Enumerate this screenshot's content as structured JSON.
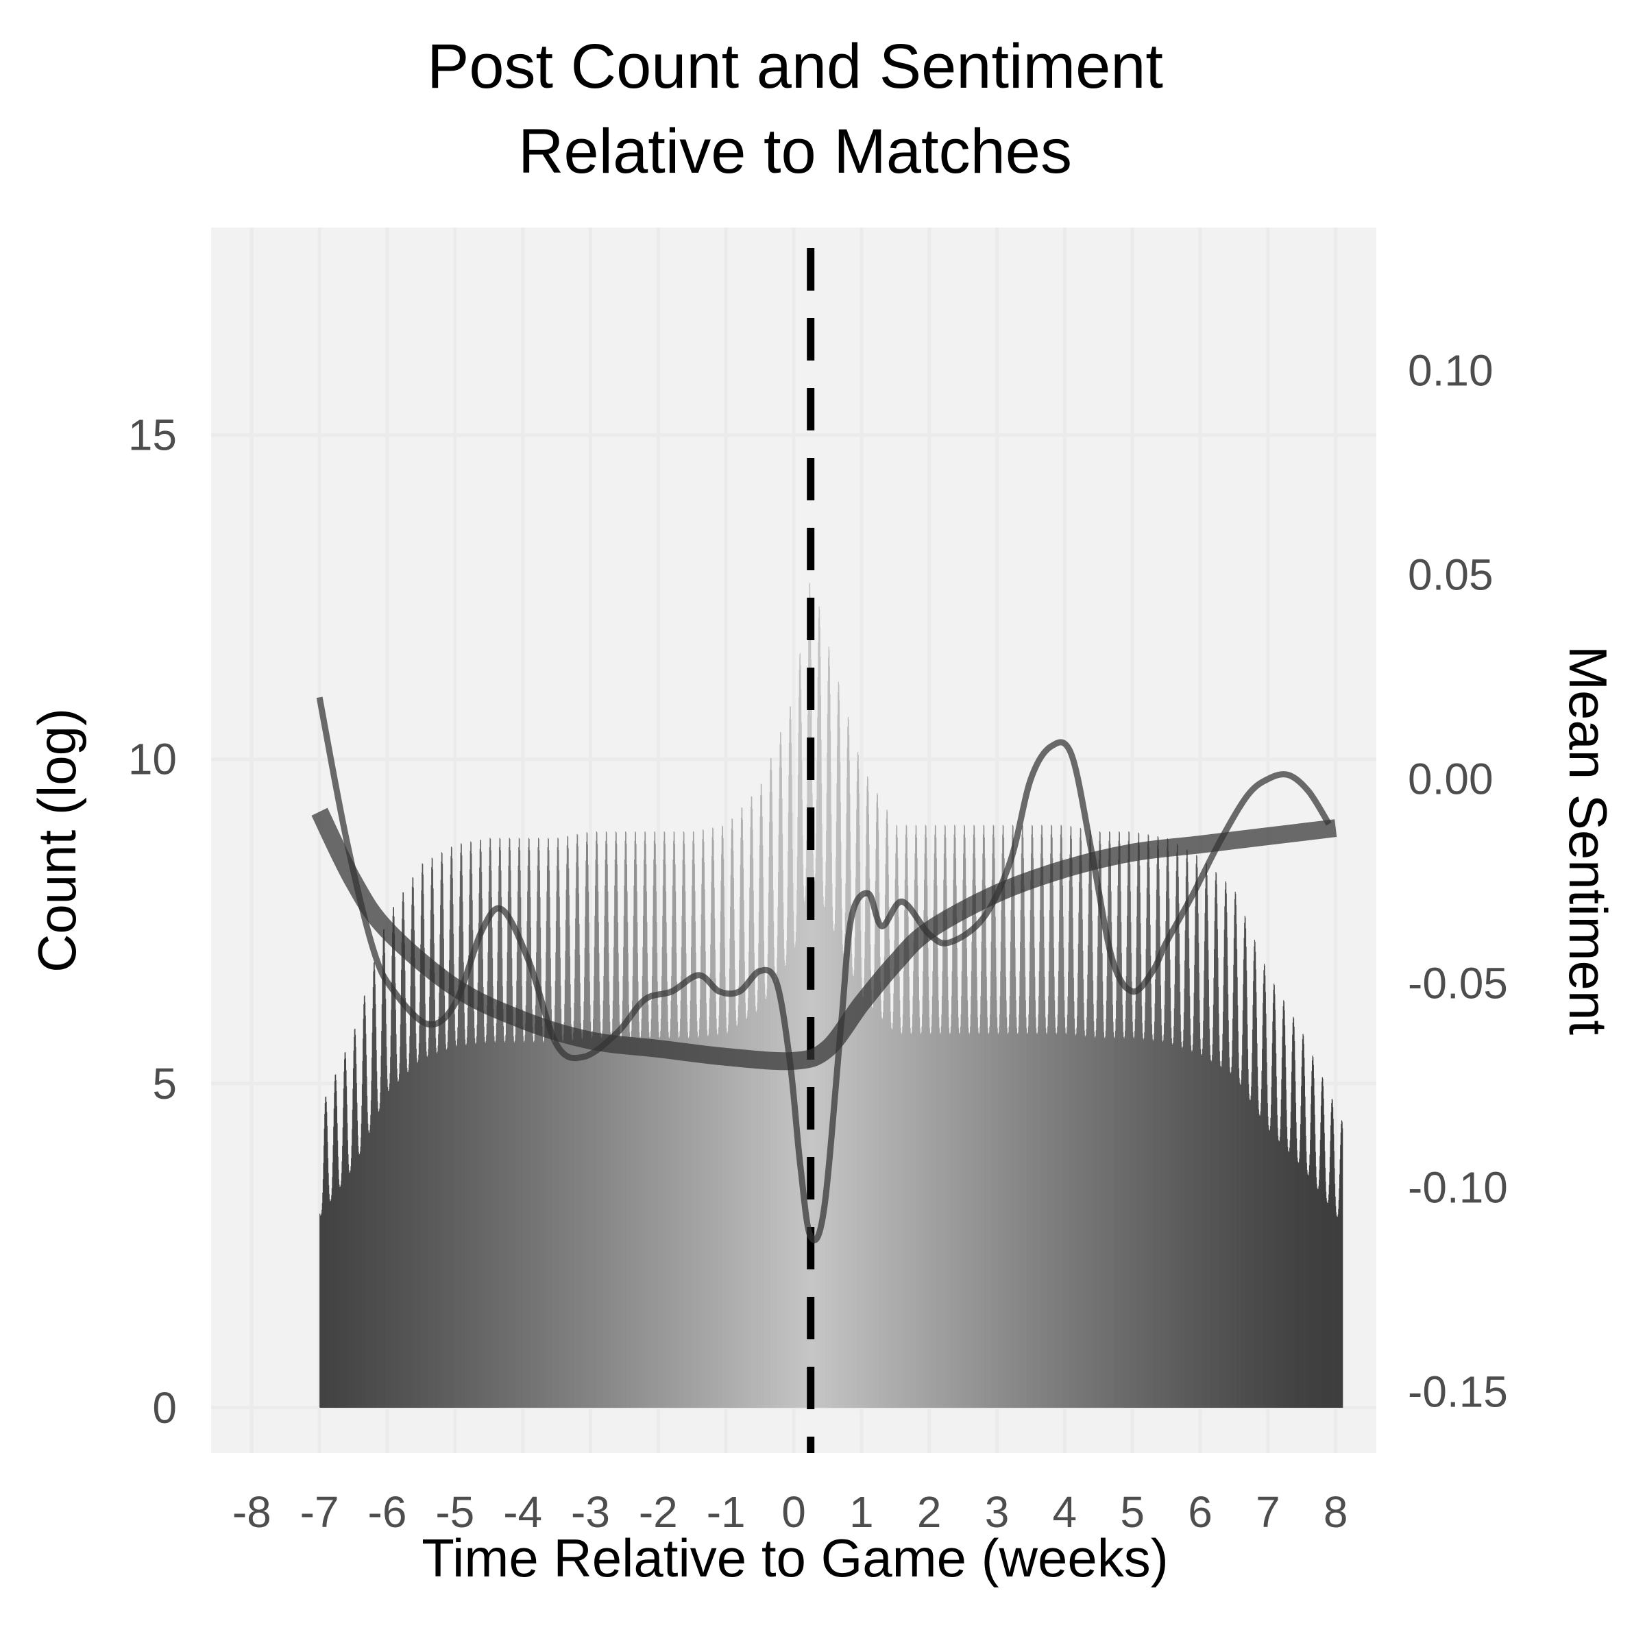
{
  "chart_data": {
    "type": "bar",
    "title_line1": "Post Count and Sentiment",
    "title_line2": "Relative to Matches",
    "xlabel": "Time Relative to Game (weeks)",
    "ylabel": "Count (log)",
    "y2label": "Mean Sentiment",
    "xlim": [
      -8.6,
      8.6
    ],
    "ylim": [
      -0.7,
      18.2
    ],
    "y2lim": [
      -0.165,
      0.135
    ],
    "x_ticks": [
      -8,
      -7,
      -6,
      -5,
      -4,
      -3,
      -2,
      -1,
      0,
      1,
      2,
      3,
      4,
      5,
      6,
      7,
      8
    ],
    "x_tick_labels": [
      "-8",
      "-7",
      "-6",
      "-5",
      "-4",
      "-3",
      "-2",
      "-1",
      "0",
      "1",
      "2",
      "3",
      "4",
      "5",
      "6",
      "7",
      "8"
    ],
    "y_ticks": [
      0,
      5,
      10,
      15
    ],
    "y_tick_labels": [
      "0",
      "5",
      "10",
      "15"
    ],
    "y2_ticks": [
      -0.15,
      -0.1,
      -0.05,
      0.0,
      0.05,
      0.1
    ],
    "y2_tick_labels": [
      "-0.15",
      "-0.10",
      "-0.05",
      "0.00",
      "0.05",
      "0.10"
    ],
    "grid": true,
    "vline_x": 0.25,
    "series": [
      {
        "kind": "bar",
        "bins_per_day": 4,
        "x_range": [
          -7.0,
          8.1
        ],
        "daily_peak_count_log": [
          [
            -7.0,
            4.6
          ],
          [
            -6.5,
            5.8
          ],
          [
            -6.0,
            7.6
          ],
          [
            -5.5,
            8.4
          ],
          [
            -5.0,
            8.7
          ],
          [
            -4.5,
            8.8
          ],
          [
            -4.0,
            8.8
          ],
          [
            -3.5,
            8.8
          ],
          [
            -3.0,
            8.9
          ],
          [
            -2.5,
            8.9
          ],
          [
            -2.0,
            8.9
          ],
          [
            -1.5,
            8.9
          ],
          [
            -1.0,
            9.0
          ],
          [
            -0.5,
            9.6
          ],
          [
            0.0,
            11.0
          ],
          [
            0.25,
            12.9
          ],
          [
            0.5,
            11.8
          ],
          [
            1.0,
            9.9
          ],
          [
            1.5,
            9.0
          ],
          [
            2.0,
            9.0
          ],
          [
            2.5,
            9.0
          ],
          [
            3.0,
            9.0
          ],
          [
            3.5,
            9.0
          ],
          [
            4.0,
            9.0
          ],
          [
            4.5,
            8.9
          ],
          [
            5.0,
            8.9
          ],
          [
            5.5,
            8.8
          ],
          [
            6.0,
            8.5
          ],
          [
            6.5,
            8.0
          ],
          [
            7.0,
            6.7
          ],
          [
            7.5,
            5.8
          ],
          [
            8.1,
            4.4
          ]
        ]
      },
      {
        "kind": "line",
        "axis": "right",
        "points": [
          [
            -7.0,
            0.02
          ],
          [
            -6.6,
            -0.015
          ],
          [
            -6.2,
            -0.042
          ],
          [
            -5.9,
            -0.052
          ],
          [
            -5.4,
            -0.06
          ],
          [
            -5.0,
            -0.055
          ],
          [
            -4.6,
            -0.037
          ],
          [
            -4.3,
            -0.032
          ],
          [
            -3.9,
            -0.045
          ],
          [
            -3.5,
            -0.065
          ],
          [
            -3.1,
            -0.068
          ],
          [
            -2.6,
            -0.062
          ],
          [
            -2.2,
            -0.054
          ],
          [
            -1.8,
            -0.052
          ],
          [
            -1.4,
            -0.048
          ],
          [
            -1.1,
            -0.052
          ],
          [
            -0.8,
            -0.052
          ],
          [
            -0.5,
            -0.047
          ],
          [
            -0.25,
            -0.05
          ],
          [
            -0.05,
            -0.07
          ],
          [
            0.1,
            -0.095
          ],
          [
            0.25,
            -0.112
          ],
          [
            0.45,
            -0.105
          ],
          [
            0.7,
            -0.06
          ],
          [
            0.85,
            -0.034
          ],
          [
            1.1,
            -0.028
          ],
          [
            1.3,
            -0.036
          ],
          [
            1.6,
            -0.03
          ],
          [
            2.0,
            -0.038
          ],
          [
            2.3,
            -0.04
          ],
          [
            2.8,
            -0.034
          ],
          [
            3.2,
            -0.02
          ],
          [
            3.5,
            0.0
          ],
          [
            3.8,
            0.008
          ],
          [
            4.1,
            0.006
          ],
          [
            4.4,
            -0.018
          ],
          [
            4.7,
            -0.044
          ],
          [
            5.0,
            -0.052
          ],
          [
            5.3,
            -0.047
          ],
          [
            5.5,
            -0.04
          ],
          [
            5.9,
            -0.028
          ],
          [
            6.3,
            -0.015
          ],
          [
            6.7,
            -0.004
          ],
          [
            7.0,
            0.0
          ],
          [
            7.3,
            0.001
          ],
          [
            7.6,
            -0.003
          ],
          [
            7.9,
            -0.011
          ]
        ]
      },
      {
        "kind": "smooth",
        "axis": "right",
        "points": [
          [
            -7.0,
            -0.008
          ],
          [
            -6.5,
            -0.025
          ],
          [
            -6.0,
            -0.037
          ],
          [
            -5.0,
            -0.051
          ],
          [
            -4.0,
            -0.059
          ],
          [
            -3.0,
            -0.064
          ],
          [
            -2.0,
            -0.066
          ],
          [
            -1.0,
            -0.068
          ],
          [
            0.0,
            -0.069
          ],
          [
            0.5,
            -0.066
          ],
          [
            1.0,
            -0.055
          ],
          [
            1.5,
            -0.045
          ],
          [
            2.0,
            -0.037
          ],
          [
            3.0,
            -0.028
          ],
          [
            4.0,
            -0.022
          ],
          [
            5.0,
            -0.018
          ],
          [
            6.0,
            -0.016
          ],
          [
            7.0,
            -0.014
          ],
          [
            8.0,
            -0.012
          ]
        ]
      }
    ]
  },
  "colors": {
    "panel_background": "#f2f2f2",
    "grid_major": "#ebebeb",
    "tick_text": "#4d4d4d",
    "text": "#000000",
    "bar_dark": "#3f3f3f",
    "bar_light": "#c6c6c6",
    "sentiment_line": "#333333",
    "vline": "#000000"
  }
}
